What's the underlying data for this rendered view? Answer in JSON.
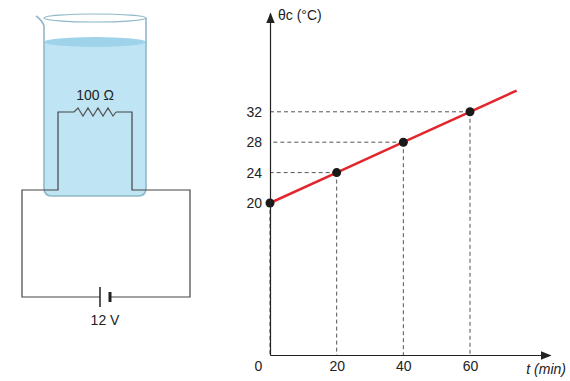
{
  "chart_data": {
    "type": "line",
    "x_label": "t (min)",
    "y_label": "θc (°C)",
    "xlim": [
      0,
      84
    ],
    "ylim": [
      0,
      45
    ],
    "xticks": [
      0,
      20,
      40,
      60
    ],
    "yticks": [
      20,
      24,
      28,
      32
    ],
    "grid": false,
    "series": [
      {
        "type": "line",
        "color": "#e3262b",
        "line_style": "solid",
        "x": [
          0,
          20,
          40,
          60,
          74
        ],
        "values": [
          20,
          24,
          28,
          32,
          34.8
        ]
      },
      {
        "type": "scatter",
        "color": "#1a1a1a",
        "marker": "circle",
        "x": [
          0,
          20,
          40,
          60
        ],
        "values": [
          20,
          24,
          28,
          32
        ]
      }
    ]
  },
  "diagram": {
    "resistor_label": "100 Ω",
    "battery_label": "12 V"
  }
}
